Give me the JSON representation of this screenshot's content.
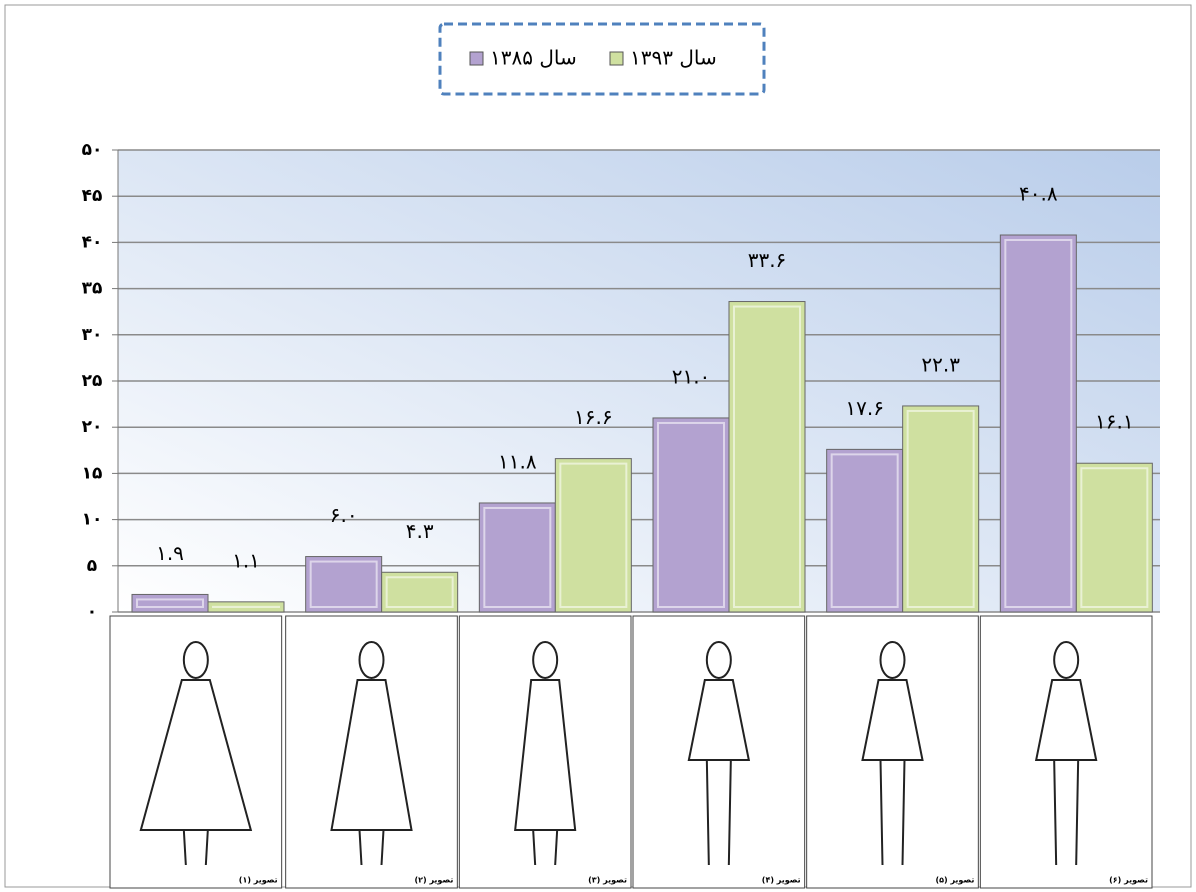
{
  "chart_data": {
    "type": "bar",
    "categories": [
      "تصویر (۱)",
      "تصویر (۲)",
      "تصویر (۳)",
      "تصویر (۴)",
      "تصویر (۵)",
      "تصویر (۶)"
    ],
    "series": [
      {
        "name": "سال ۱۳۸۵",
        "color": "#b3a2d0",
        "values": [
          1.9,
          6.0,
          11.8,
          21.0,
          17.6,
          40.8
        ],
        "value_labels": [
          "۱.۹",
          "۶.۰",
          "۱۱.۸",
          "۲۱.۰",
          "۱۷.۶",
          "۴۰.۸"
        ]
      },
      {
        "name": "سال ۱۳۹۳",
        "color": "#cfe0a0",
        "values": [
          1.1,
          4.3,
          16.6,
          33.6,
          22.3,
          16.1
        ],
        "value_labels": [
          "۱.۱",
          "۴.۳",
          "۱۶.۶",
          "۳۳.۶",
          "۲۲.۳",
          "۱۶.۱"
        ]
      }
    ],
    "ylim": [
      0,
      50
    ],
    "yticks": [
      {
        "value": 0,
        "label": "۰"
      },
      {
        "value": 5,
        "label": "۵"
      },
      {
        "value": 10,
        "label": "۱۰"
      },
      {
        "value": 15,
        "label": "۱۵"
      },
      {
        "value": 20,
        "label": "۲۰"
      },
      {
        "value": 25,
        "label": "۲۵"
      },
      {
        "value": 30,
        "label": "۳۰"
      },
      {
        "value": 35,
        "label": "۳۵"
      },
      {
        "value": 40,
        "label": "۴۰"
      },
      {
        "value": 45,
        "label": "۴۵"
      },
      {
        "value": 50,
        "label": "۵۰"
      }
    ],
    "grid": true,
    "legend": "top"
  }
}
